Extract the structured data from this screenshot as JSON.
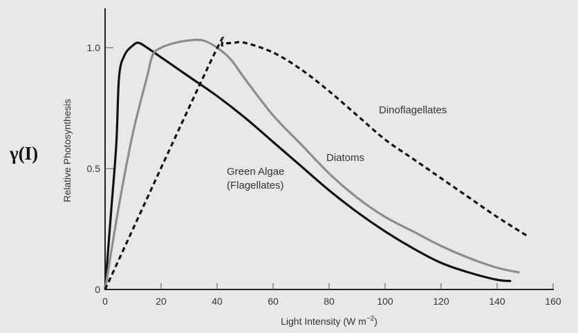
{
  "symbol": "γ(I)",
  "chart_data": {
    "type": "line",
    "title": "",
    "xlabel": "Light Intensity (W m",
    "xlabel_sup": "−2",
    "xlabel_end": ")",
    "ylabel": "Relative Photosynthesis",
    "xlim": [
      0,
      160
    ],
    "ylim": [
      0,
      1.15
    ],
    "xticks": [
      0,
      20,
      40,
      60,
      80,
      100,
      120,
      140,
      160
    ],
    "yticks": [
      0,
      0.5,
      1.0
    ],
    "ytick_labels": [
      "0",
      "0.5",
      "1.0"
    ],
    "grid": false,
    "series": [
      {
        "name": "Green Algae",
        "name2": "(Flagellates)",
        "color": "#111111",
        "style": "solid",
        "x": [
          0,
          2,
          4,
          5,
          7,
          10,
          12,
          15,
          20,
          30,
          40,
          50,
          60,
          70,
          80,
          90,
          100,
          110,
          120,
          130,
          140,
          145
        ],
        "y": [
          0,
          0.3,
          0.6,
          0.88,
          0.97,
          1.01,
          1.02,
          1.0,
          0.96,
          0.88,
          0.8,
          0.71,
          0.61,
          0.51,
          0.41,
          0.32,
          0.24,
          0.17,
          0.11,
          0.07,
          0.04,
          0.035
        ]
      },
      {
        "name": "Diatoms",
        "color": "#8c8c8c",
        "style": "solid",
        "x": [
          0,
          5,
          10,
          15,
          17,
          20,
          25,
          30,
          35,
          40,
          45,
          50,
          60,
          70,
          80,
          90,
          100,
          110,
          120,
          130,
          140,
          148
        ],
        "y": [
          0,
          0.35,
          0.65,
          0.88,
          0.97,
          1.0,
          1.02,
          1.03,
          1.03,
          1.0,
          0.95,
          0.87,
          0.72,
          0.6,
          0.48,
          0.38,
          0.3,
          0.24,
          0.18,
          0.13,
          0.09,
          0.07
        ]
      },
      {
        "name": "Dinoflagellates",
        "color": "#111111",
        "style": "dashed",
        "x": [
          0,
          38,
          42,
          46,
          50,
          60,
          70,
          80,
          90,
          100,
          110,
          120,
          130,
          140,
          151
        ],
        "y": [
          0,
          0.95,
          1.01,
          1.02,
          1.02,
          0.98,
          0.91,
          0.82,
          0.72,
          0.62,
          0.54,
          0.46,
          0.38,
          0.3,
          0.22
        ]
      }
    ]
  }
}
